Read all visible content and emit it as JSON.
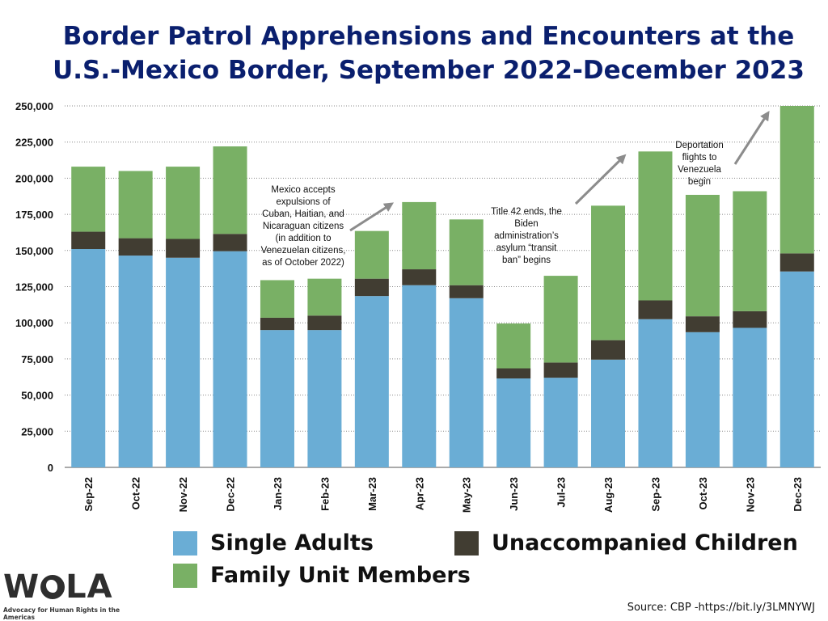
{
  "title": "Border Patrol Apprehensions and Encounters at the U.S.-Mexico Border, September 2022-December 2023",
  "source": "Source: CBP -https://bit.ly/3LMNYWJ",
  "logo": {
    "name": "WOLA",
    "tagline": "Advocacy for Human Rights in the Americas"
  },
  "colors": {
    "single": "#6aadd5",
    "children": "#413d32",
    "family": "#79b065",
    "arrow": "#8c8c8c",
    "title": "#0a1f6e"
  },
  "chart_data": {
    "type": "bar",
    "stacked": true,
    "categories": [
      "Sep-22",
      "Oct-22",
      "Nov-22",
      "Dec-22",
      "Jan-23",
      "Feb-23",
      "Mar-23",
      "Apr-23",
      "May-23",
      "Jun-23",
      "Jul-23",
      "Aug-23",
      "Sep-23",
      "Oct-23",
      "Nov-23",
      "Dec-23"
    ],
    "series": [
      {
        "name": "Single Adults",
        "color": "#6aadd5",
        "values": [
          151000,
          146500,
          145000,
          149500,
          95000,
          95000,
          118500,
          126000,
          117000,
          61500,
          62000,
          74500,
          102500,
          93500,
          96500,
          135500
        ]
      },
      {
        "name": "Unaccompanied Children",
        "color": "#413d32",
        "values": [
          12000,
          12000,
          13000,
          12000,
          8500,
          10000,
          12000,
          11000,
          9000,
          7000,
          10500,
          13500,
          13000,
          11000,
          11500,
          12500
        ]
      },
      {
        "name": "Family Unit Members",
        "color": "#79b065",
        "values": [
          45000,
          46500,
          50000,
          60500,
          26000,
          25500,
          33000,
          46500,
          45500,
          31000,
          60000,
          93000,
          103000,
          84000,
          83000,
          102000
        ]
      }
    ],
    "ylim": [
      0,
      250000
    ],
    "yticks": [
      0,
      25000,
      50000,
      75000,
      100000,
      125000,
      150000,
      175000,
      200000,
      225000,
      250000
    ],
    "ytick_labels": [
      "0",
      "25,000",
      "50,000",
      "75,000",
      "100,000",
      "125,000",
      "150,000",
      "175,000",
      "200,000",
      "225,000",
      "250,000"
    ],
    "grid": true,
    "legend_placement": "bottom",
    "annotations": [
      {
        "lines": [
          "Mexico accepts",
          "expulsions of",
          "Cuban, Haitian, and",
          "Nicaraguan citizens",
          "(in addition to",
          "Venezuelan citizens,",
          "as of October 2022)"
        ],
        "near": "Mar-23"
      },
      {
        "lines": [
          "Title 42 ends, the",
          "Biden",
          "administration’s",
          "asylum “transit",
          "ban” begins"
        ],
        "near": "Jul-23"
      },
      {
        "lines": [
          "Deportation",
          "flights to",
          "Venezuela",
          "begin"
        ],
        "near": "Nov-23"
      }
    ]
  }
}
